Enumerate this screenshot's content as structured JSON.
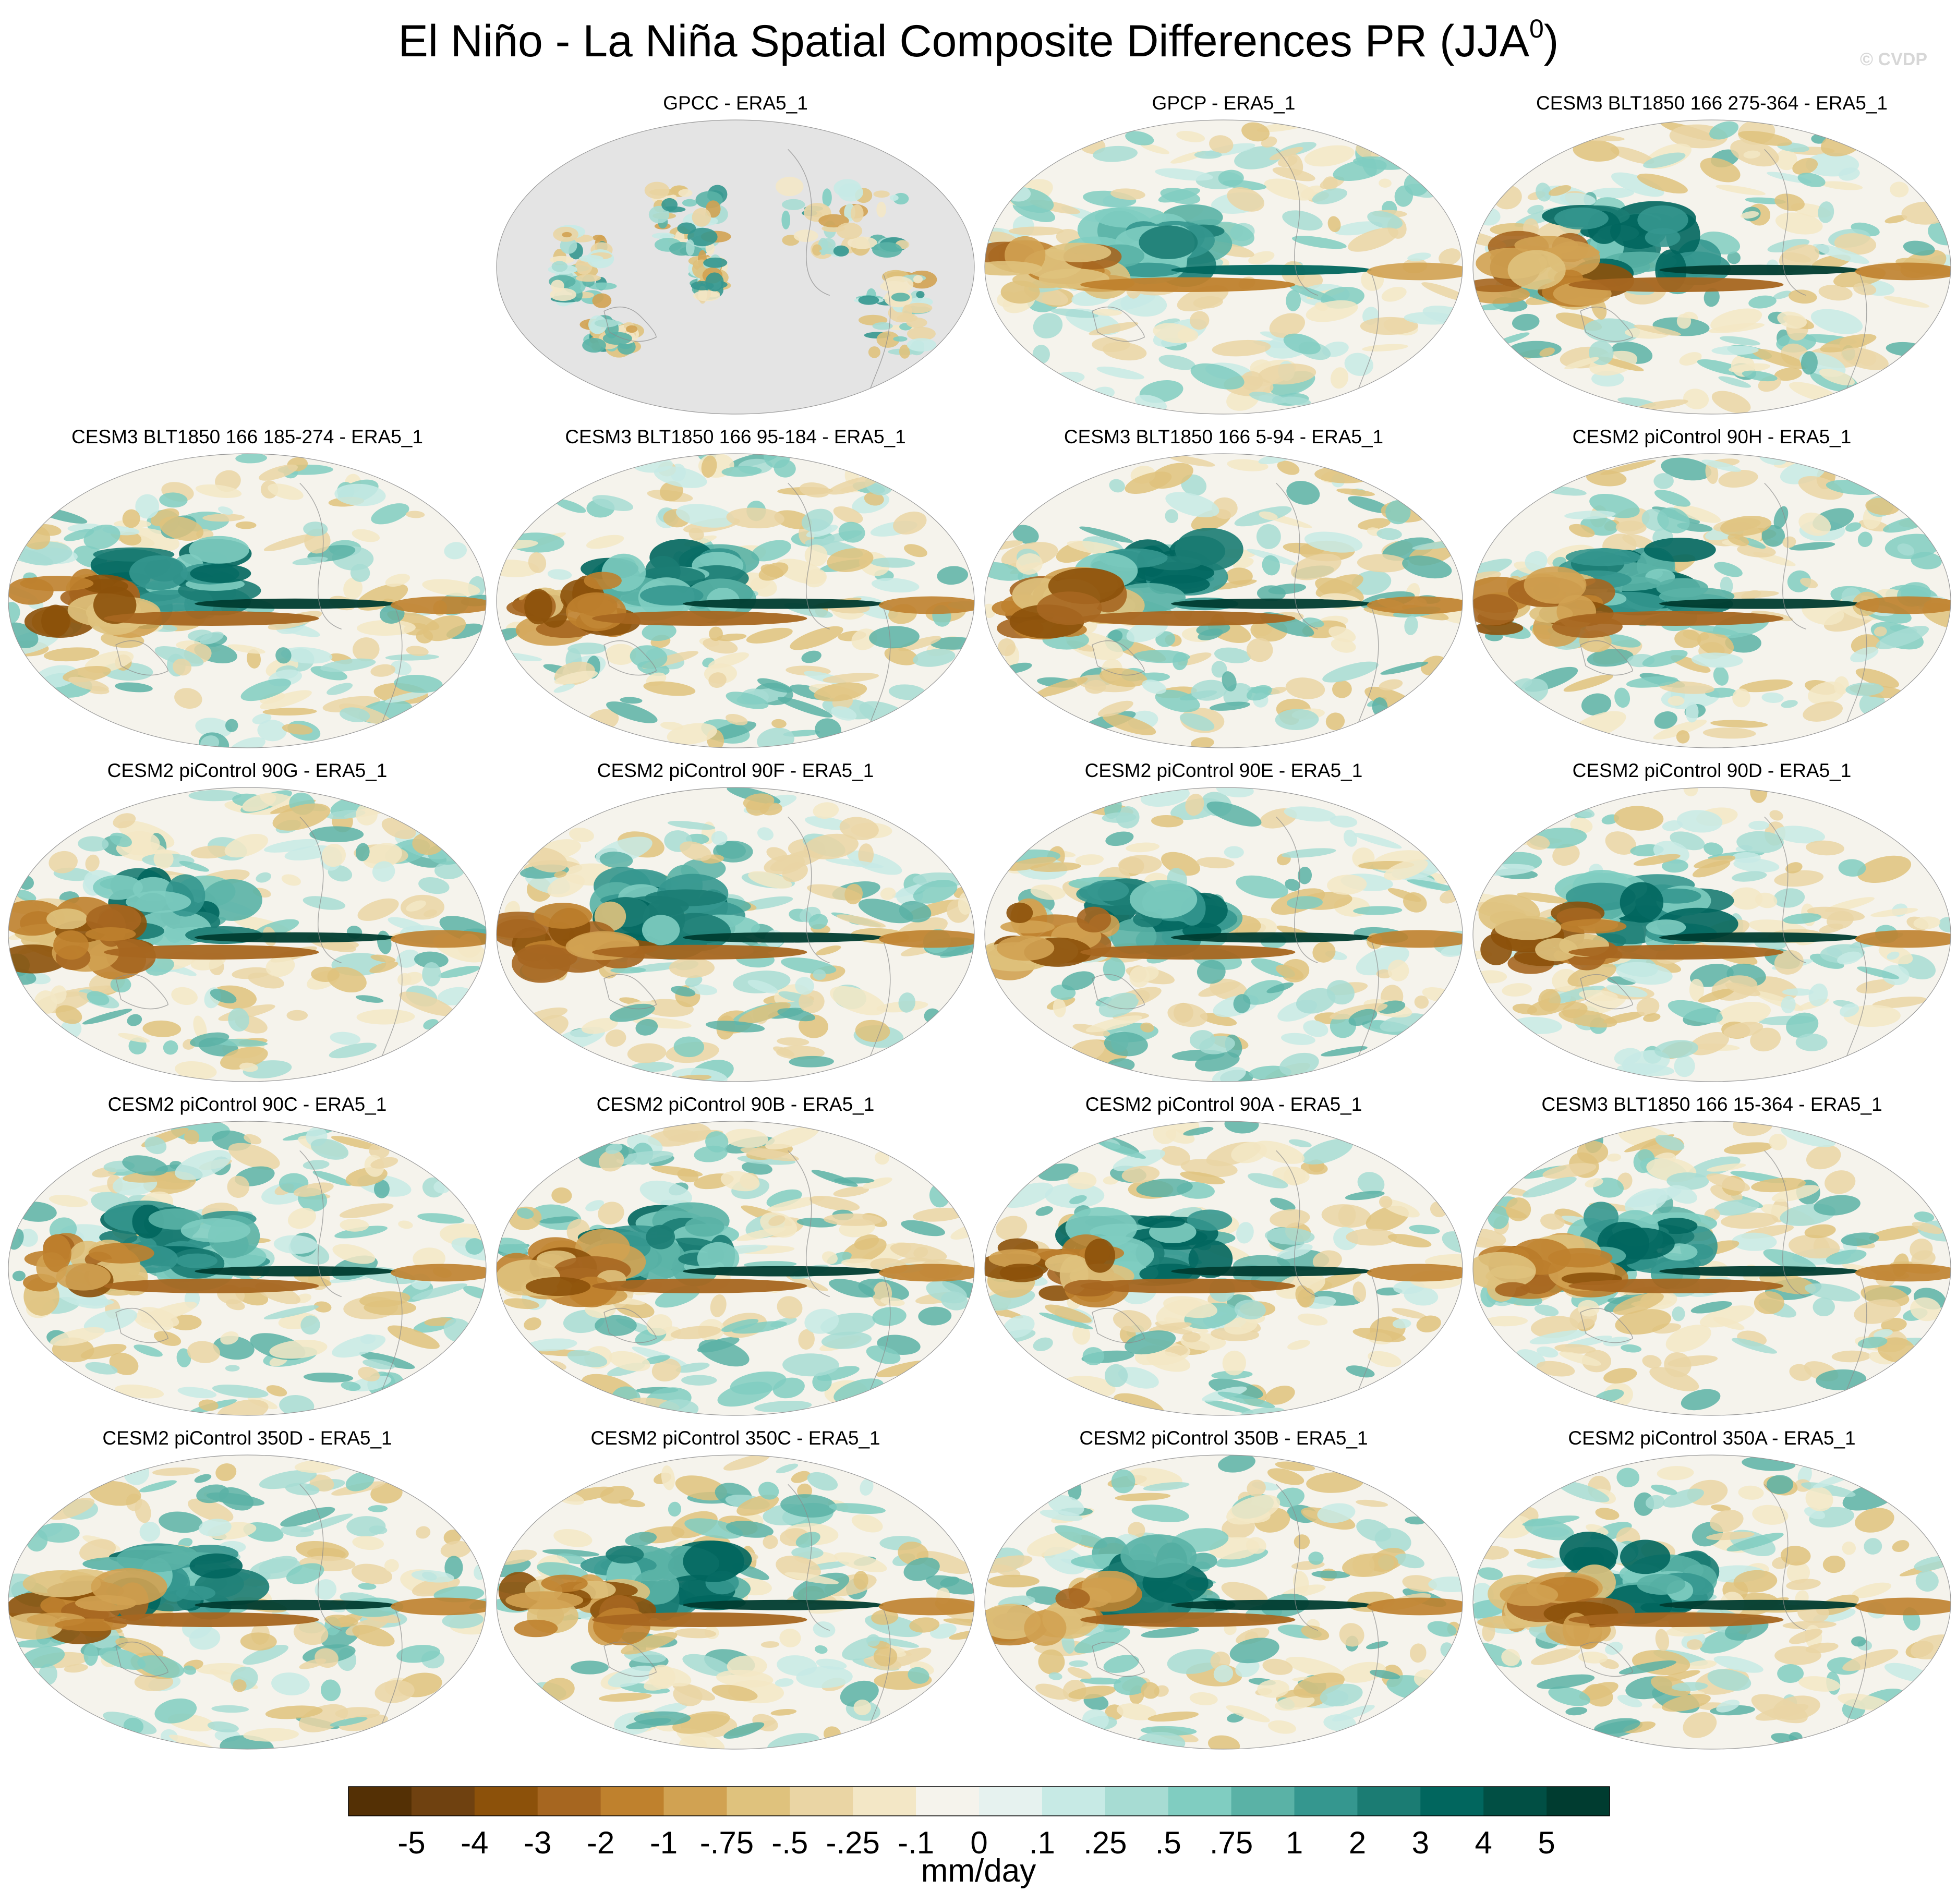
{
  "figure": {
    "title_main": "El Niño - La Niña Spatial Composite Differences PR (JJA",
    "title_sup": "0",
    "title_close": ")",
    "watermark": "© CVDP"
  },
  "chart_data": {
    "type": "heatmap",
    "title": "El Niño - La Niña Spatial Composite Differences PR (JJA0)",
    "projection": "Robinson (Pacific-centered global map)",
    "panels": [
      {
        "title": "GPCC - ERA5_1",
        "row": 0,
        "col": 1,
        "land_only": true,
        "intensity": 0.45
      },
      {
        "title": "GPCP - ERA5_1",
        "row": 0,
        "col": 2,
        "land_only": false,
        "intensity": 0.75
      },
      {
        "title": "CESM3 BLT1850 166 275-364 - ERA5_1",
        "row": 0,
        "col": 3,
        "land_only": false,
        "intensity": 1.0
      },
      {
        "title": "CESM3 BLT1850 166 185-274 - ERA5_1",
        "row": 1,
        "col": 0,
        "land_only": false,
        "intensity": 1.0
      },
      {
        "title": "CESM3 BLT1850 166 95-184 - ERA5_1",
        "row": 1,
        "col": 1,
        "land_only": false,
        "intensity": 1.0
      },
      {
        "title": "CESM3 BLT1850 166 5-94 - ERA5_1",
        "row": 1,
        "col": 2,
        "land_only": false,
        "intensity": 1.0
      },
      {
        "title": "CESM2 piControl 90H - ERA5_1",
        "row": 1,
        "col": 3,
        "land_only": false,
        "intensity": 1.0
      },
      {
        "title": "CESM2 piControl 90G - ERA5_1",
        "row": 2,
        "col": 0,
        "land_only": false,
        "intensity": 1.0
      },
      {
        "title": "CESM2 piControl 90F - ERA5_1",
        "row": 2,
        "col": 1,
        "land_only": false,
        "intensity": 1.0
      },
      {
        "title": "CESM2 piControl 90E - ERA5_1",
        "row": 2,
        "col": 2,
        "land_only": false,
        "intensity": 1.0
      },
      {
        "title": "CESM2 piControl 90D - ERA5_1",
        "row": 2,
        "col": 3,
        "land_only": false,
        "intensity": 1.0
      },
      {
        "title": "CESM2 piControl 90C - ERA5_1",
        "row": 3,
        "col": 0,
        "land_only": false,
        "intensity": 1.0
      },
      {
        "title": "CESM2 piControl 90B - ERA5_1",
        "row": 3,
        "col": 1,
        "land_only": false,
        "intensity": 1.0
      },
      {
        "title": "CESM2 piControl 90A - ERA5_1",
        "row": 3,
        "col": 2,
        "land_only": false,
        "intensity": 1.0
      },
      {
        "title": "CESM3 BLT1850 166 15-364 - ERA5_1",
        "row": 3,
        "col": 3,
        "land_only": false,
        "intensity": 1.0
      },
      {
        "title": "CESM2 piControl 350D - ERA5_1",
        "row": 4,
        "col": 0,
        "land_only": false,
        "intensity": 1.0
      },
      {
        "title": "CESM2 piControl 350C - ERA5_1",
        "row": 4,
        "col": 1,
        "land_only": false,
        "intensity": 1.0
      },
      {
        "title": "CESM2 piControl 350B - ERA5_1",
        "row": 4,
        "col": 2,
        "land_only": false,
        "intensity": 1.0
      },
      {
        "title": "CESM2 piControl 350A - ERA5_1",
        "row": 4,
        "col": 3,
        "land_only": false,
        "intensity": 1.0
      }
    ],
    "colorbar": {
      "units": "mm/day",
      "levels": [
        "-5",
        "-4",
        "-3",
        "-2",
        "-1",
        "-.75",
        "-.5",
        "-.25",
        "-.1",
        "0",
        ".1",
        ".25",
        ".5",
        ".75",
        "1",
        "2",
        "3",
        "4",
        "5"
      ],
      "colors": [
        "#543005",
        "#6f4110",
        "#8c510a",
        "#a66620",
        "#bf812d",
        "#d1a252",
        "#dfc27d",
        "#ead5a4",
        "#f3e7c6",
        "#f5f3ec",
        "#e6f2ef",
        "#c7eae5",
        "#a7dcd3",
        "#80cdc1",
        "#5ab2a6",
        "#35978f",
        "#1b7c73",
        "#01665e",
        "#014f44",
        "#003c30"
      ]
    }
  }
}
